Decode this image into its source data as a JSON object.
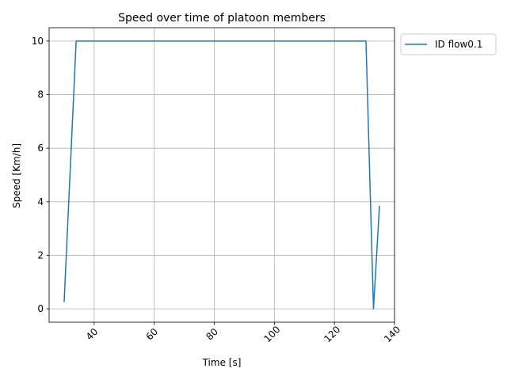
{
  "chart_data": {
    "type": "line",
    "title": "Speed over time of platoon members",
    "xlabel": "Time [s]",
    "ylabel": "Speed [Km/h]",
    "xlim": [
      25,
      140
    ],
    "ylim": [
      -0.5,
      10.5
    ],
    "xticks": [
      40,
      60,
      80,
      100,
      120,
      140
    ],
    "yticks": [
      0,
      2,
      4,
      6,
      8,
      10
    ],
    "grid": true,
    "legend_position": "outside-top-right",
    "series": [
      {
        "name": "ID flow0.1",
        "color": "#1f77b4",
        "x": [
          30,
          34,
          130.5,
          133,
          135
        ],
        "y": [
          0.25,
          10,
          10,
          0,
          3.85
        ]
      }
    ]
  }
}
